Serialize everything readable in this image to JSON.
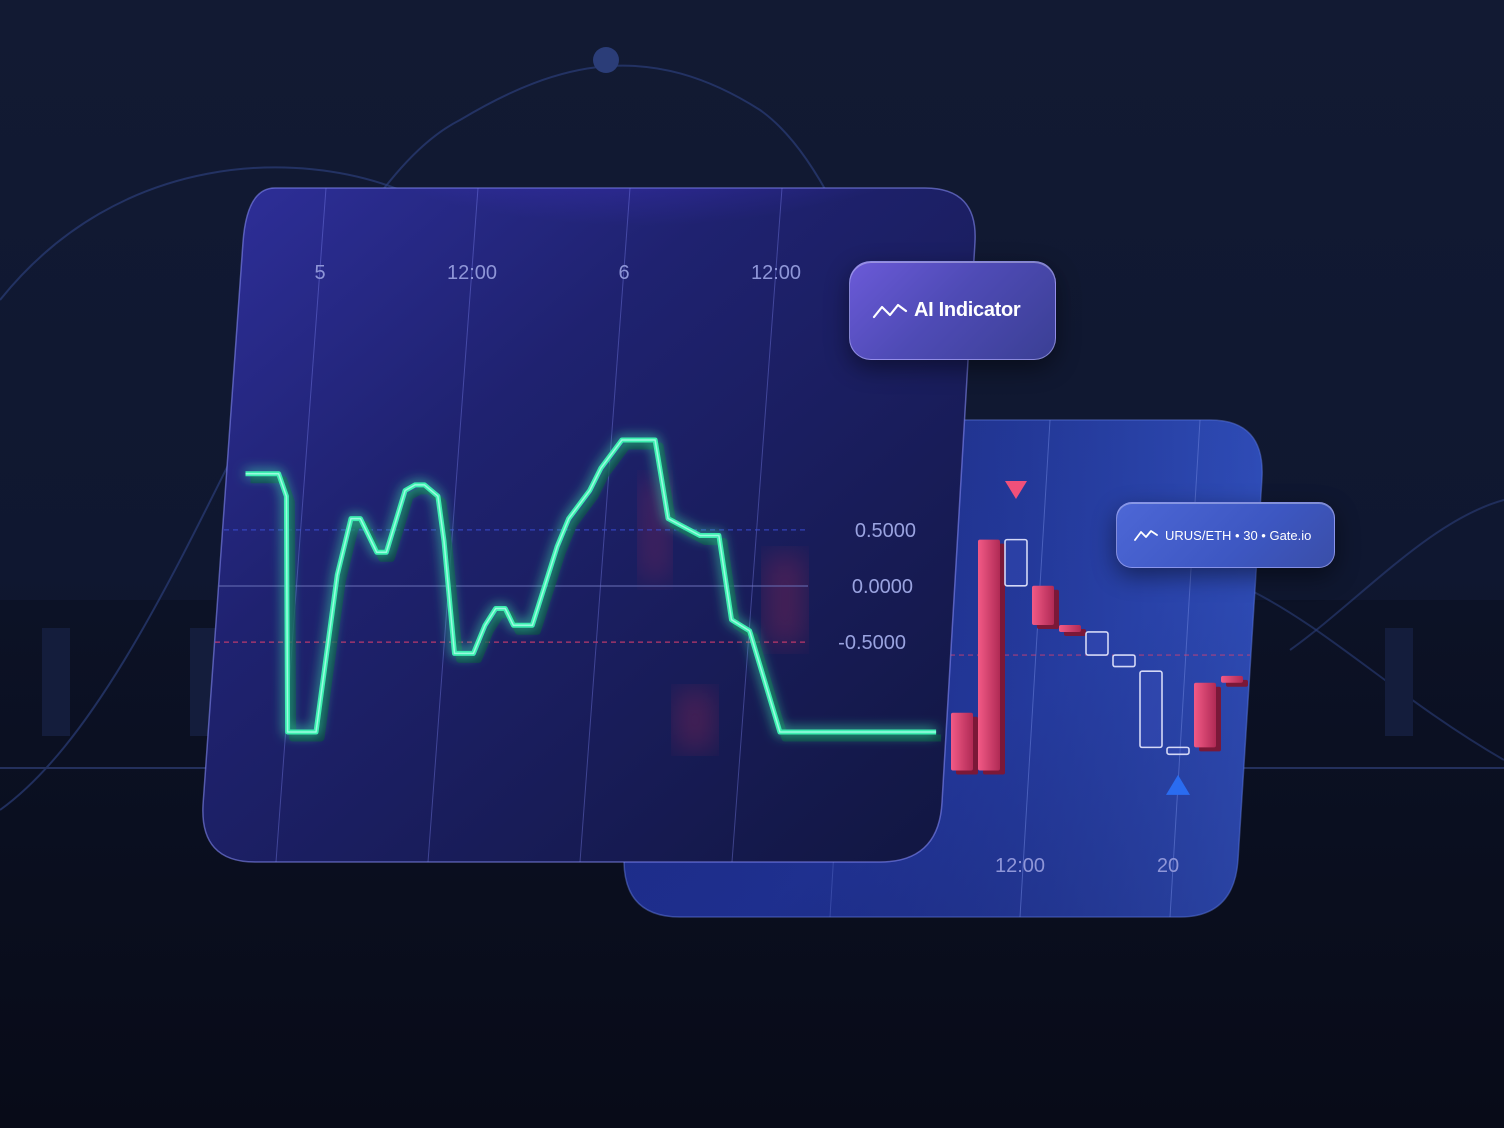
{
  "chart_data": [
    {
      "type": "line",
      "x_tick_labels": [
        "5",
        "12:00",
        "6",
        "12:00"
      ],
      "y_tick_labels": [
        "0.5000",
        "0.0000",
        "-0.5000"
      ],
      "ylim": [
        -1.5,
        1.2
      ],
      "reference_lines": [
        0.5,
        0.0,
        -0.5
      ],
      "grid": true,
      "series": [
        {
          "color": "#3cf0b0",
          "x": [
            0,
            0.35,
            0.45,
            0.65,
            0.95,
            1.05,
            1.15,
            1.25,
            1.45,
            1.55,
            1.7,
            1.8,
            1.9,
            2.05,
            2.15,
            2.35,
            2.55,
            2.65,
            2.75,
            2.85,
            2.95,
            3.15,
            3.35,
            3.45,
            3.65,
            3.75,
            3.95,
            4.3,
            4.5,
            4.85,
            5.05,
            5.25,
            5.45,
            5.85,
            7.5
          ],
          "y": [
            1.0,
            1.0,
            0.8,
            -1.3,
            -1.3,
            0.1,
            0.6,
            0.6,
            0.3,
            0.3,
            0.85,
            0.9,
            0.9,
            0.8,
            0.4,
            -0.6,
            -0.6,
            -0.35,
            -0.2,
            -0.2,
            -0.35,
            -0.35,
            0.35,
            0.6,
            0.85,
            1.05,
            1.3,
            1.3,
            0.6,
            0.45,
            0.45,
            -0.3,
            -0.4,
            -1.3,
            -1.3
          ]
        }
      ]
    },
    {
      "type": "candlestick",
      "x_tick_labels": [
        "12:00",
        "20"
      ],
      "series": [
        {
          "name": "URUS/ETH · 30 · Gate.io",
          "candles": [
            {
              "open": 1.2,
              "close": 0.95,
              "high": 1.25,
              "low": 0.9,
              "direction": "down"
            },
            {
              "open": 0.95,
              "close": 1.95,
              "high": 2.0,
              "low": 0.9,
              "direction": "down"
            },
            {
              "open": 1.95,
              "close": 1.75,
              "high": 2.1,
              "low": 1.7,
              "direction": "up"
            },
            {
              "open": 1.75,
              "close": 1.58,
              "high": 1.8,
              "low": 1.55,
              "direction": "down"
            },
            {
              "open": 1.58,
              "close": 1.55,
              "high": 1.6,
              "low": 1.53,
              "direction": "down"
            },
            {
              "open": 1.55,
              "close": 1.45,
              "high": 1.57,
              "low": 1.43,
              "direction": "up"
            },
            {
              "open": 1.45,
              "close": 1.4,
              "high": 1.47,
              "low": 1.38,
              "direction": "up"
            },
            {
              "open": 1.38,
              "close": 1.05,
              "high": 1.4,
              "low": 1.0,
              "direction": "up"
            },
            {
              "open": 1.05,
              "close": 1.02,
              "high": 1.06,
              "low": 1.0,
              "direction": "up"
            },
            {
              "open": 1.05,
              "close": 1.33,
              "high": 1.35,
              "low": 1.03,
              "direction": "down"
            },
            {
              "open": 1.33,
              "close": 1.36,
              "high": 1.37,
              "low": 1.32,
              "direction": "down"
            }
          ]
        }
      ],
      "reference_lines": [
        1.45
      ],
      "markers": [
        {
          "shape": "triangle-down",
          "color": "#f0507a",
          "candle_index": 2
        },
        {
          "shape": "triangle-up",
          "color": "#2a6cf0",
          "candle_index": 8
        }
      ]
    }
  ],
  "badges": {
    "indicator": {
      "label": "AI Indicator",
      "icon": "trend-line-icon"
    },
    "pair": {
      "label": "URUS/ETH • 30 • Gate.io",
      "icon": "trend-line-icon"
    }
  },
  "colors": {
    "indicator_line": "#3cf0b0",
    "bear_candle": "#e0406e",
    "bull_candle": "#c8ccee",
    "marker_down": "#f0507a",
    "marker_up": "#2a6cf0",
    "background": "#0e1530"
  }
}
